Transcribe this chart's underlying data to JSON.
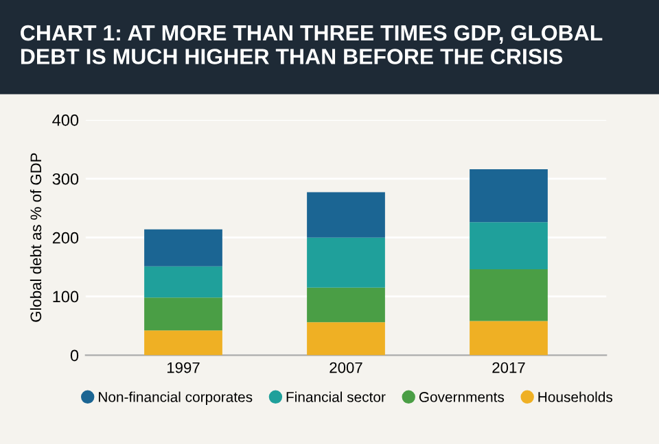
{
  "chart_data": {
    "type": "bar",
    "title": "CHART 1: AT MORE THAN THREE TIMES GDP, GLOBAL DEBT IS MUCH HIGHER THAN BEFORE THE CRISIS",
    "ylabel": "Global debt as % of GDP",
    "categories": [
      "1997",
      "2007",
      "2017"
    ],
    "stacked": true,
    "series": [
      {
        "name": "Households",
        "color": "#efb024",
        "values": [
          42,
          56,
          58
        ]
      },
      {
        "name": "Governments",
        "color": "#4a9e45",
        "values": [
          56,
          59,
          88
        ]
      },
      {
        "name": "Financial sector",
        "color": "#1fa09b",
        "values": [
          53,
          85,
          80
        ]
      },
      {
        "name": "Non-financial corporates",
        "color": "#1b6593",
        "values": [
          63,
          77,
          90
        ]
      }
    ],
    "ylim": [
      0,
      400
    ],
    "yticks": [
      0,
      100,
      200,
      300,
      400
    ],
    "grid": "y",
    "legend": "bottom"
  }
}
